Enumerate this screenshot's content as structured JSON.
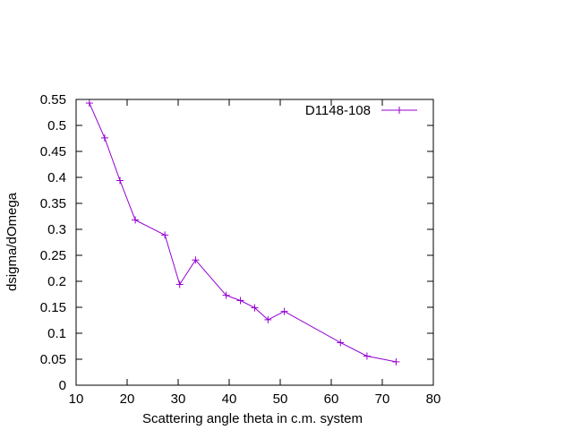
{
  "chart_data": {
    "type": "line",
    "xlabel": "Scattering angle theta in c.m. system",
    "ylabel": "dsigma/dOmega",
    "xlim": [
      10,
      80
    ],
    "ylim": [
      0,
      0.55
    ],
    "x_ticks": [
      "10",
      "20",
      "30",
      "40",
      "50",
      "60",
      "70",
      "80"
    ],
    "y_ticks": [
      "0",
      "0.05",
      "0.1",
      "0.15",
      "0.2",
      "0.25",
      "0.3",
      "0.35",
      "0.4",
      "0.45",
      "0.5",
      "0.55"
    ],
    "grid": false,
    "legend_position": "top-right",
    "series": [
      {
        "name": "D1148-108",
        "color": "#9400d3",
        "marker": "plus",
        "x": [
          12.6,
          15.6,
          18.6,
          21.6,
          27.4,
          30.3,
          33.4,
          39.4,
          42.2,
          45.0,
          47.6,
          50.8,
          61.8,
          67.0,
          72.7
        ],
        "y": [
          0.543,
          0.476,
          0.394,
          0.318,
          0.289,
          0.194,
          0.241,
          0.173,
          0.163,
          0.149,
          0.126,
          0.142,
          0.082,
          0.056,
          0.045
        ]
      }
    ]
  }
}
